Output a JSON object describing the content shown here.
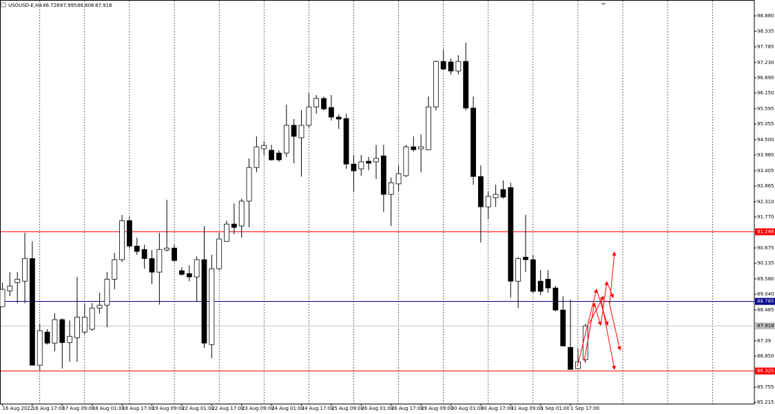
{
  "chart_data": {
    "type": "candlestick",
    "title": "USOUSD-E,H4",
    "categories": [
      "16 Aug 2022",
      null,
      null,
      null,
      "16 Aug 17:00",
      null,
      null,
      null,
      "17 Aug 09:00",
      null,
      null,
      null,
      "18 Aug 01:00",
      null,
      null,
      null,
      "18 Aug 17:00",
      null,
      null,
      null,
      "19 Aug 09:00",
      null,
      null,
      null,
      "22 Aug 01:00",
      null,
      null,
      null,
      "22 Aug 17:00",
      null,
      null,
      null,
      "23 Aug 09:00",
      null,
      null,
      null,
      "24 Aug 01:00",
      null,
      null,
      null,
      "24 Aug 17:00",
      null,
      null,
      null,
      "25 Aug 09:00",
      null,
      null,
      null,
      "26 Aug 01:00",
      null,
      null,
      null,
      "26 Aug 17:00",
      null,
      null,
      null,
      "29 Aug 09:00",
      null,
      null,
      null,
      "30 Aug 01:00",
      null,
      null,
      null,
      "30 Aug 17:00",
      null,
      null,
      null,
      "31 Aug 09:00",
      null,
      null,
      null,
      "1 Sep 01:00",
      null,
      null,
      null,
      "1 Sep 17:00",
      null,
      null
    ],
    "open": [
      88.6,
      89.16,
      89.45,
      89.5,
      90.3,
      86.53,
      87.7,
      87.31,
      88.14,
      87.33,
      87.5,
      87.7,
      87.8,
      88.55,
      88.65,
      89.57,
      90.26,
      91.64,
      90.74,
      90.62,
      90.3,
      89.82,
      90.6,
      90.67,
      89.87,
      89.77,
      89.65,
      90.26,
      87.26,
      89.94,
      90.91,
      91.52,
      91.45,
      92.33,
      93.52,
      94.18,
      94.13,
      94.03,
      94.03,
      95.01,
      94.57,
      95.01,
      95.66,
      95.96,
      95.64,
      95.3,
      95.25,
      93.64,
      93.47,
      93.74,
      93.72,
      93.93,
      92.57,
      92.94,
      93.23,
      94.25,
      94.18,
      94.15,
      95.66,
      97.27,
      97.25,
      96.93,
      97.27,
      95.62,
      93.2,
      92.13,
      92.45,
      92.74,
      92.81,
      89.5,
      90.35,
      90.26,
      89.5,
      89.57,
      89.26,
      88.48,
      87.16,
      86.41,
      86.728
    ],
    "high": [
      89.45,
      89.82,
      89.82,
      91.21,
      90.91,
      87.99,
      87.8,
      88.36,
      88.19,
      88.11,
      89.65,
      88.72,
      88.72,
      89.09,
      89.82,
      90.5,
      91.84,
      91.77,
      91.04,
      90.79,
      90.6,
      91.21,
      92.38,
      90.79,
      89.99,
      90.06,
      90.38,
      91.45,
      90.43,
      91.21,
      91.64,
      92.25,
      92.42,
      93.84,
      94.62,
      94.45,
      94.32,
      94.13,
      95.74,
      95.23,
      95.54,
      96.15,
      96.08,
      96.03,
      96.08,
      95.4,
      95.42,
      93.96,
      93.96,
      93.89,
      94.32,
      94.32,
      93.16,
      93.59,
      94.32,
      94.62,
      94.69,
      96.03,
      97.3,
      97.69,
      97.37,
      97.49,
      97.93,
      96.03,
      93.59,
      92.67,
      92.91,
      93.06,
      92.98,
      90.35,
      91.84,
      90.43,
      89.89,
      89.89,
      89.33,
      88.97,
      88.84,
      87.14,
      87.995
    ],
    "low": [
      88.6,
      88.97,
      88.72,
      88.72,
      86.53,
      86.33,
      87.26,
      87.02,
      86.41,
      86.65,
      86.65,
      87.63,
      87.75,
      88.36,
      87.87,
      89.21,
      90.18,
      90.67,
      90.43,
      89.94,
      89.4,
      88.67,
      90.55,
      90.18,
      89.7,
      89.5,
      88.77,
      87.14,
      86.77,
      89.89,
      90.91,
      91.16,
      91.04,
      91.4,
      93.35,
      93.96,
      93.76,
      93.72,
      93.89,
      93.67,
      93.2,
      94.93,
      95.42,
      95.54,
      95.18,
      94.88,
      93.47,
      92.67,
      93.23,
      93.42,
      93.11,
      91.94,
      91.45,
      92.69,
      93.18,
      94.08,
      93.35,
      94.13,
      95.54,
      96.96,
      96.81,
      96.81,
      95.54,
      92.91,
      90.87,
      91.69,
      92.13,
      92.42,
      88.92,
      88.55,
      89.82,
      89.09,
      89.01,
      89.09,
      88.43,
      87.21,
      86.38,
      86.38,
      86.608
    ],
    "close": [
      89.21,
      89.33,
      89.57,
      90.3,
      86.53,
      87.75,
      87.31,
      88.14,
      87.33,
      87.55,
      88.23,
      88.23,
      88.55,
      88.65,
      89.57,
      90.26,
      91.64,
      90.74,
      90.55,
      90.3,
      89.82,
      90.62,
      90.67,
      90.23,
      89.74,
      89.65,
      90.26,
      87.31,
      89.94,
      90.99,
      91.52,
      91.4,
      92.33,
      93.52,
      94.25,
      94.3,
      93.79,
      93.79,
      95.01,
      94.62,
      95.01,
      95.66,
      95.96,
      95.59,
      95.3,
      95.23,
      93.64,
      93.4,
      93.72,
      93.67,
      93.84,
      92.57,
      92.98,
      93.3,
      94.25,
      94.15,
      94.25,
      95.66,
      97.27,
      97.0,
      96.93,
      97.27,
      95.62,
      93.2,
      92.13,
      92.5,
      92.57,
      92.47,
      89.5,
      90.3,
      90.26,
      89.14,
      89.14,
      89.26,
      88.48,
      87.21,
      86.38,
      86.65,
      87.918
    ],
    "up_color": "#ffffff",
    "down_color": "#000000",
    "ylim": [
      85.17,
      99.44
    ],
    "yticks": [
      {
        "value": 98.88,
        "label": "98.880"
      },
      98.335,
      97.785,
      {
        "value": 97.23,
        "label": "97.230"
      },
      {
        "value": 96.69,
        "label": "96.690"
      },
      {
        "value": 96.15,
        "label": "96.150"
      },
      95.595,
      95.055,
      {
        "value": 94.5,
        "label": "94.500"
      },
      {
        "value": 93.96,
        "label": "93.960"
      },
      93.405,
      92.865,
      {
        "value": 92.31,
        "label": "92.310"
      },
      {
        "value": 91.77,
        "label": "91.770"
      },
      90.675,
      90.135,
      {
        "value": 89.58,
        "label": "89.580"
      },
      {
        "value": 89.04,
        "label": "89.040"
      },
      88.485,
      87.39,
      {
        "value": 86.85,
        "label": "86.850"
      },
      85.755,
      85.215
    ],
    "levels": [
      {
        "value": 91.246,
        "color": "#ff0000"
      },
      {
        "value": 88.785,
        "color": "#00008b"
      },
      {
        "value": 87.918,
        "color": "#c0c0c0"
      },
      {
        "value": 86.325,
        "color": "#ff0000"
      }
    ]
  }
}
